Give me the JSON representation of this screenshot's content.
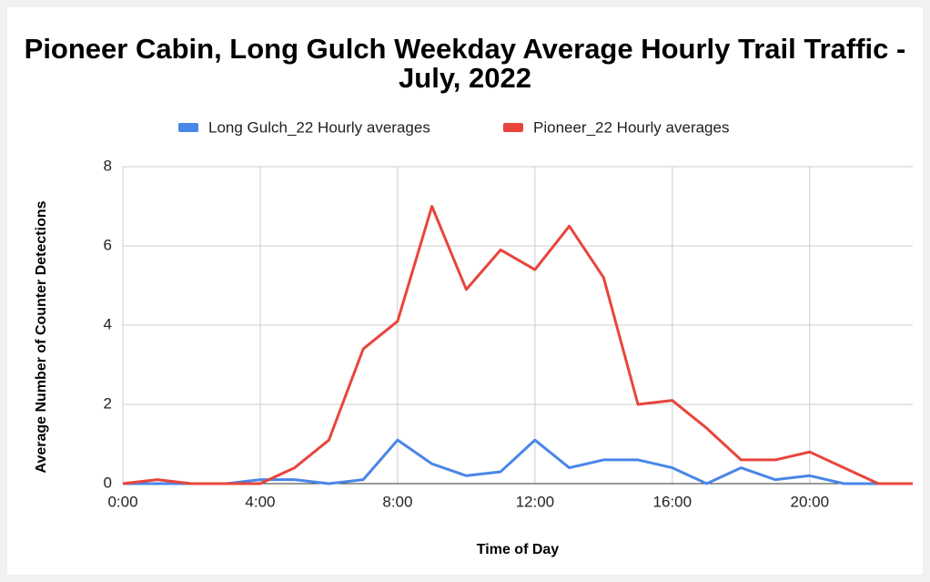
{
  "chart_data": {
    "type": "line",
    "title": "Pioneer Cabin, Long Gulch Weekday Average Hourly Trail Traffic - July, 2022",
    "x_label": "Time of Day",
    "y_label": "Average Number of Counter Detections",
    "x": [
      0,
      1,
      2,
      3,
      4,
      5,
      6,
      7,
      8,
      9,
      10,
      11,
      12,
      13,
      14,
      15,
      16,
      17,
      18,
      19,
      20,
      21,
      22,
      23
    ],
    "series": [
      {
        "name": "Long Gulch_22 Hourly averages",
        "color": "#4a86e8",
        "values": [
          0,
          0,
          0,
          0,
          0.1,
          0.1,
          0,
          0.1,
          1.1,
          0.5,
          0.2,
          0.3,
          1.1,
          0.4,
          0.6,
          0.6,
          0.4,
          0,
          0.4,
          0.1,
          0.2,
          0,
          0,
          0
        ]
      },
      {
        "name": "Pioneer_22 Hourly averages",
        "color": "#e8453c",
        "values": [
          0,
          0.1,
          0,
          0,
          0,
          0.4,
          1.1,
          3.4,
          4.1,
          7.0,
          4.9,
          5.9,
          5.4,
          6.5,
          5.2,
          2.0,
          2.1,
          1.4,
          0.6,
          0.6,
          0.8,
          0.4,
          0,
          0
        ]
      }
    ],
    "xlim": [
      0,
      23
    ],
    "xticks": [
      {
        "value": 0,
        "label": "0:00"
      },
      {
        "value": 4,
        "label": "4:00"
      },
      {
        "value": 8,
        "label": "8:00"
      },
      {
        "value": 12,
        "label": "12:00"
      },
      {
        "value": 16,
        "label": "16:00"
      },
      {
        "value": 20,
        "label": "20:00"
      }
    ],
    "ylim": [
      0,
      8
    ],
    "yticks": [
      0,
      2,
      4,
      6,
      8
    ],
    "grid": true,
    "legend": "top"
  }
}
